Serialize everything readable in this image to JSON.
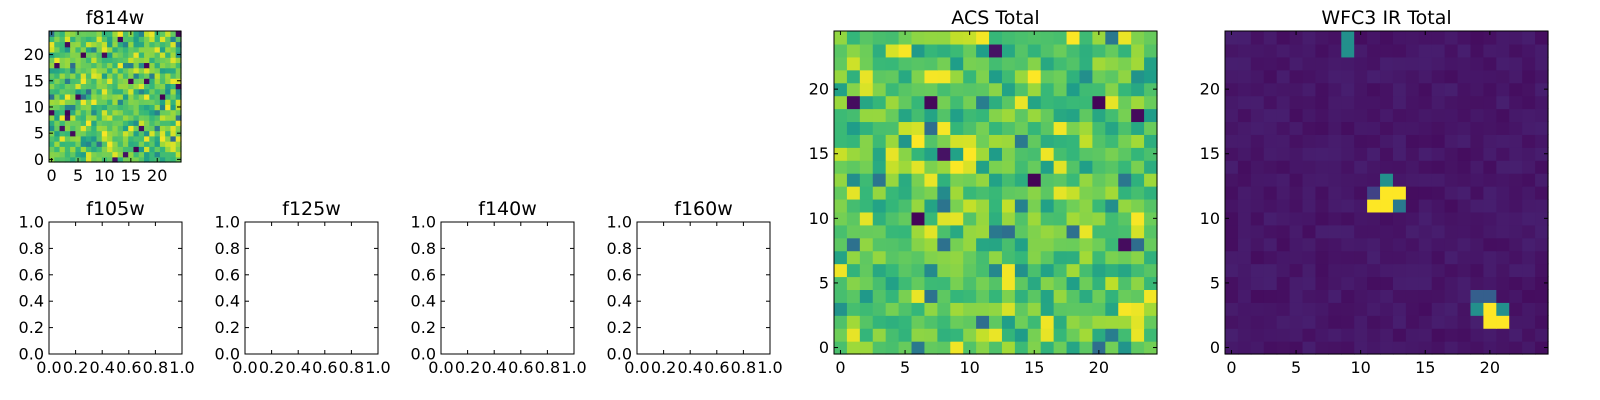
{
  "chart_data": [
    {
      "type": "heatmap",
      "title": "f814w",
      "colormap": "viridis",
      "grid": "25x25",
      "xlim": [
        -0.5,
        24.5
      ],
      "ylim": [
        -0.5,
        24.5
      ],
      "xticks": [
        "0",
        "5",
        "10",
        "15",
        "20"
      ],
      "yticks": [
        "0",
        "5",
        "10",
        "15",
        "20"
      ],
      "values": "noisy green-yellow field, occasional dark purple pixels"
    },
    {
      "type": "empty",
      "title": "f105w",
      "xlim": [
        0,
        1
      ],
      "ylim": [
        0,
        1
      ],
      "xticks": [
        "0.0",
        "0.2",
        "0.4",
        "0.6",
        "0.8",
        "1.0"
      ],
      "yticks": [
        "0.0",
        "0.2",
        "0.4",
        "0.6",
        "0.8",
        "1.0"
      ]
    },
    {
      "type": "empty",
      "title": "f125w",
      "xlim": [
        0,
        1
      ],
      "ylim": [
        0,
        1
      ],
      "xticks": [
        "0.0",
        "0.2",
        "0.4",
        "0.6",
        "0.8",
        "1.0"
      ],
      "yticks": [
        "0.0",
        "0.2",
        "0.4",
        "0.6",
        "0.8",
        "1.0"
      ]
    },
    {
      "type": "empty",
      "title": "f140w",
      "xlim": [
        0,
        1
      ],
      "ylim": [
        0,
        1
      ],
      "xticks": [
        "0.0",
        "0.2",
        "0.4",
        "0.6",
        "0.8",
        "1.0"
      ],
      "yticks": [
        "0.0",
        "0.2",
        "0.4",
        "0.6",
        "0.8",
        "1.0"
      ]
    },
    {
      "type": "empty",
      "title": "f160w",
      "xlim": [
        0,
        1
      ],
      "ylim": [
        0,
        1
      ],
      "xticks": [
        "0.0",
        "0.2",
        "0.4",
        "0.6",
        "0.8",
        "1.0"
      ],
      "yticks": [
        "0.0",
        "0.2",
        "0.4",
        "0.6",
        "0.8",
        "1.0"
      ]
    },
    {
      "type": "heatmap",
      "title": "ACS Total",
      "colormap": "viridis",
      "grid": "25x25",
      "xlim": [
        -0.5,
        24.5
      ],
      "ylim": [
        -0.5,
        24.5
      ],
      "xticks": [
        "0",
        "5",
        "10",
        "15",
        "20"
      ],
      "yticks": [
        "0",
        "5",
        "10",
        "15",
        "20"
      ],
      "values": "noisy green-yellow field, occasional dark purple pixels"
    },
    {
      "type": "heatmap",
      "title": "WFC3 IR Total",
      "colormap": "viridis",
      "grid": "25x25",
      "xlim": [
        -0.5,
        24.5
      ],
      "ylim": [
        -0.5,
        24.5
      ],
      "xticks": [
        "0",
        "5",
        "10",
        "15",
        "20"
      ],
      "yticks": [
        "0",
        "5",
        "10",
        "15",
        "20"
      ],
      "background_level": 0.06,
      "bright_pixels": [
        {
          "x": 9,
          "y": 23,
          "level": 0.5
        },
        {
          "x": 9,
          "y": 24,
          "level": 0.5
        },
        {
          "x": 11,
          "y": 11,
          "level": 1.0
        },
        {
          "x": 12,
          "y": 11,
          "level": 1.0
        },
        {
          "x": 12,
          "y": 12,
          "level": 1.0
        },
        {
          "x": 13,
          "y": 12,
          "level": 1.0
        },
        {
          "x": 12,
          "y": 13,
          "level": 0.5
        },
        {
          "x": 13,
          "y": 11,
          "level": 0.4
        },
        {
          "x": 11,
          "y": 12,
          "level": 0.2
        },
        {
          "x": 20,
          "y": 2,
          "level": 1.0
        },
        {
          "x": 21,
          "y": 2,
          "level": 1.0
        },
        {
          "x": 20,
          "y": 3,
          "level": 1.0
        },
        {
          "x": 19,
          "y": 3,
          "level": 0.5
        },
        {
          "x": 21,
          "y": 3,
          "level": 0.5
        },
        {
          "x": 19,
          "y": 4,
          "level": 0.3
        },
        {
          "x": 20,
          "y": 4,
          "level": 0.3
        }
      ]
    }
  ]
}
